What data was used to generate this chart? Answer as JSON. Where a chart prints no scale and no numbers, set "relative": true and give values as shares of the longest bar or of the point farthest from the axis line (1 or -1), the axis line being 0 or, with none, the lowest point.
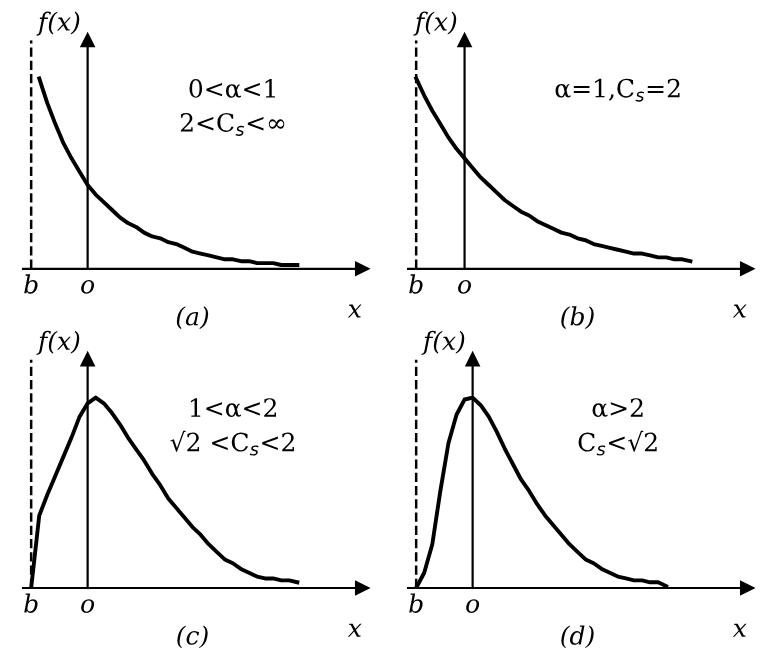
{
  "chart_data": [
    {
      "type": "line",
      "relative": true,
      "title": "(a)",
      "xlabel": "x",
      "ylabel": "f(x)",
      "legend": false,
      "categories": [
        "b",
        null,
        null,
        null,
        null,
        null,
        null,
        "o",
        null,
        null,
        null,
        null,
        null,
        null,
        null,
        null,
        null,
        null,
        null,
        null,
        null,
        null,
        null,
        null,
        null,
        null,
        null,
        null,
        null,
        null,
        null,
        null,
        null,
        null
      ],
      "series": [
        {
          "color": "#000000",
          "values": [
            null,
            1.0,
            0.87,
            0.76,
            0.66,
            0.58,
            0.51,
            0.44,
            0.39,
            0.35,
            0.31,
            0.27,
            0.24,
            0.22,
            0.19,
            0.17,
            0.16,
            0.14,
            0.13,
            0.11,
            0.09,
            0.08,
            0.07,
            0.06,
            0.05,
            0.05,
            0.04,
            0.04,
            0.03,
            0.03,
            0.03,
            0.02,
            0.02,
            0.02
          ]
        }
      ],
      "ref_lines": [
        {
          "axis": "x",
          "value": "b",
          "line_style": "dashed"
        }
      ],
      "annotations": [
        "0<α<1",
        "2<C$_{s}$<∞"
      ]
    },
    {
      "type": "line",
      "relative": true,
      "title": "(b)",
      "xlabel": "x",
      "ylabel": "f(x)",
      "legend": false,
      "categories": [
        "b",
        null,
        null,
        null,
        null,
        null,
        "o",
        null,
        null,
        null,
        null,
        null,
        null,
        null,
        null,
        null,
        null,
        null,
        null,
        null,
        null,
        null,
        null,
        null,
        null,
        null,
        null,
        null,
        null,
        null,
        null,
        null,
        null,
        null,
        null
      ],
      "series": [
        {
          "color": "#000000",
          "values": [
            1.0,
            0.91,
            0.83,
            0.76,
            0.69,
            0.63,
            0.58,
            0.53,
            0.48,
            0.44,
            0.4,
            0.36,
            0.33,
            0.3,
            0.28,
            0.25,
            0.23,
            0.21,
            0.19,
            0.18,
            0.16,
            0.15,
            0.13,
            0.12,
            0.11,
            0.1,
            0.09,
            0.08,
            0.08,
            0.07,
            0.06,
            0.06,
            0.05,
            0.05,
            0.04
          ]
        }
      ],
      "ref_lines": [
        {
          "axis": "x",
          "value": "b",
          "line_style": "dashed"
        }
      ],
      "annotations": [
        "α=1,C$_{s}$=2"
      ]
    },
    {
      "type": "line",
      "relative": true,
      "title": "(c)",
      "xlabel": "x",
      "ylabel": "f(x)",
      "legend": false,
      "categories": [
        "b",
        null,
        null,
        null,
        null,
        null,
        null,
        "o",
        null,
        null,
        null,
        null,
        null,
        null,
        null,
        null,
        null,
        null,
        null,
        null,
        null,
        null,
        null,
        null,
        null,
        null,
        null,
        null,
        null,
        null,
        null,
        null,
        null,
        null
      ],
      "series": [
        {
          "color": "#000000",
          "values": [
            0,
            0.38,
            0.49,
            0.59,
            0.69,
            0.79,
            0.9,
            0.97,
            1.0,
            0.97,
            0.92,
            0.86,
            0.79,
            0.73,
            0.67,
            0.6,
            0.54,
            0.47,
            0.42,
            0.37,
            0.32,
            0.28,
            0.23,
            0.19,
            0.15,
            0.13,
            0.1,
            0.08,
            0.06,
            0.05,
            0.05,
            0.04,
            0.04,
            0.03
          ]
        }
      ],
      "ref_lines": [
        {
          "axis": "x",
          "value": "b",
          "line_style": "dashed"
        }
      ],
      "annotations": [
        "1<α<2",
        "√2 <C$_{s}$<2"
      ]
    },
    {
      "type": "line",
      "relative": true,
      "title": "(d)",
      "xlabel": "x",
      "ylabel": "f(x)",
      "legend": false,
      "categories": [
        "b",
        null,
        null,
        null,
        null,
        null,
        null,
        "o",
        null,
        null,
        null,
        null,
        null,
        null,
        null,
        null,
        null,
        null,
        null,
        null,
        null,
        null,
        null,
        null,
        null,
        null,
        null,
        null,
        null,
        null,
        null,
        null
      ],
      "series": [
        {
          "color": "#000000",
          "values": [
            0,
            0.08,
            0.23,
            0.51,
            0.76,
            0.91,
            0.99,
            1.0,
            0.96,
            0.9,
            0.82,
            0.73,
            0.65,
            0.57,
            0.51,
            0.44,
            0.38,
            0.33,
            0.28,
            0.23,
            0.19,
            0.15,
            0.13,
            0.1,
            0.08,
            0.06,
            0.05,
            0.04,
            0.04,
            0.03,
            0.03,
            0.01
          ]
        }
      ],
      "ref_lines": [
        {
          "axis": "x",
          "value": "b",
          "line_style": "dashed"
        }
      ],
      "annotations": [
        "α>2",
        "C$_{s}$<√2"
      ]
    }
  ]
}
